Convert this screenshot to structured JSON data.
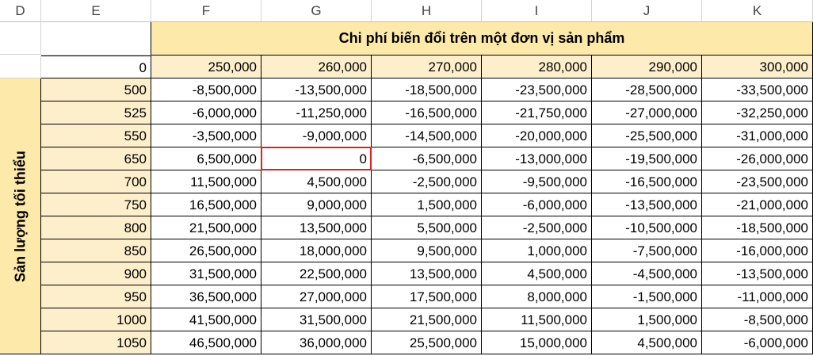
{
  "columns": [
    "D",
    "E",
    "F",
    "G",
    "H",
    "I",
    "J",
    "K"
  ],
  "header_title": "Chi phí biến đổi trên một đơn vị sản phẩm",
  "row_label": "Sản lượng tối thiểu",
  "corner_value": "0",
  "cost_headers": [
    "250,000",
    "260,000",
    "270,000",
    "280,000",
    "290,000",
    "300,000"
  ],
  "rows": [
    {
      "qty": "500",
      "values": [
        "-8,500,000",
        "-13,500,000",
        "-18,500,000",
        "-23,500,000",
        "-28,500,000",
        "-33,500,000"
      ]
    },
    {
      "qty": "525",
      "values": [
        "-6,000,000",
        "-11,250,000",
        "-16,500,000",
        "-21,750,000",
        "-27,000,000",
        "-32,250,000"
      ]
    },
    {
      "qty": "550",
      "values": [
        "-3,500,000",
        "-9,000,000",
        "-14,500,000",
        "-20,000,000",
        "-25,500,000",
        "-31,000,000"
      ]
    },
    {
      "qty": "650",
      "values": [
        "6,500,000",
        "0",
        "-6,500,000",
        "-13,000,000",
        "-19,500,000",
        "-26,000,000"
      ]
    },
    {
      "qty": "700",
      "values": [
        "11,500,000",
        "4,500,000",
        "-2,500,000",
        "-9,500,000",
        "-16,500,000",
        "-23,500,000"
      ]
    },
    {
      "qty": "750",
      "values": [
        "16,500,000",
        "9,000,000",
        "1,500,000",
        "-6,000,000",
        "-13,500,000",
        "-21,000,000"
      ]
    },
    {
      "qty": "800",
      "values": [
        "21,500,000",
        "13,500,000",
        "5,500,000",
        "-2,500,000",
        "-10,500,000",
        "-18,500,000"
      ]
    },
    {
      "qty": "850",
      "values": [
        "26,500,000",
        "18,000,000",
        "9,500,000",
        "1,000,000",
        "-7,500,000",
        "-16,000,000"
      ]
    },
    {
      "qty": "900",
      "values": [
        "31,500,000",
        "22,500,000",
        "13,500,000",
        "4,500,000",
        "-4,500,000",
        "-13,500,000"
      ]
    },
    {
      "qty": "950",
      "values": [
        "36,500,000",
        "27,000,000",
        "17,500,000",
        "8,000,000",
        "-1,500,000",
        "-11,000,000"
      ]
    },
    {
      "qty": "1000",
      "values": [
        "41,500,000",
        "31,500,000",
        "21,500,000",
        "11,500,000",
        "1,500,000",
        "-8,500,000"
      ]
    },
    {
      "qty": "1050",
      "values": [
        "46,500,000",
        "36,000,000",
        "25,500,000",
        "15,000,000",
        "4,500,000",
        "-6,000,000"
      ]
    }
  ],
  "selected_cell": {
    "row": 3,
    "col": 1
  }
}
